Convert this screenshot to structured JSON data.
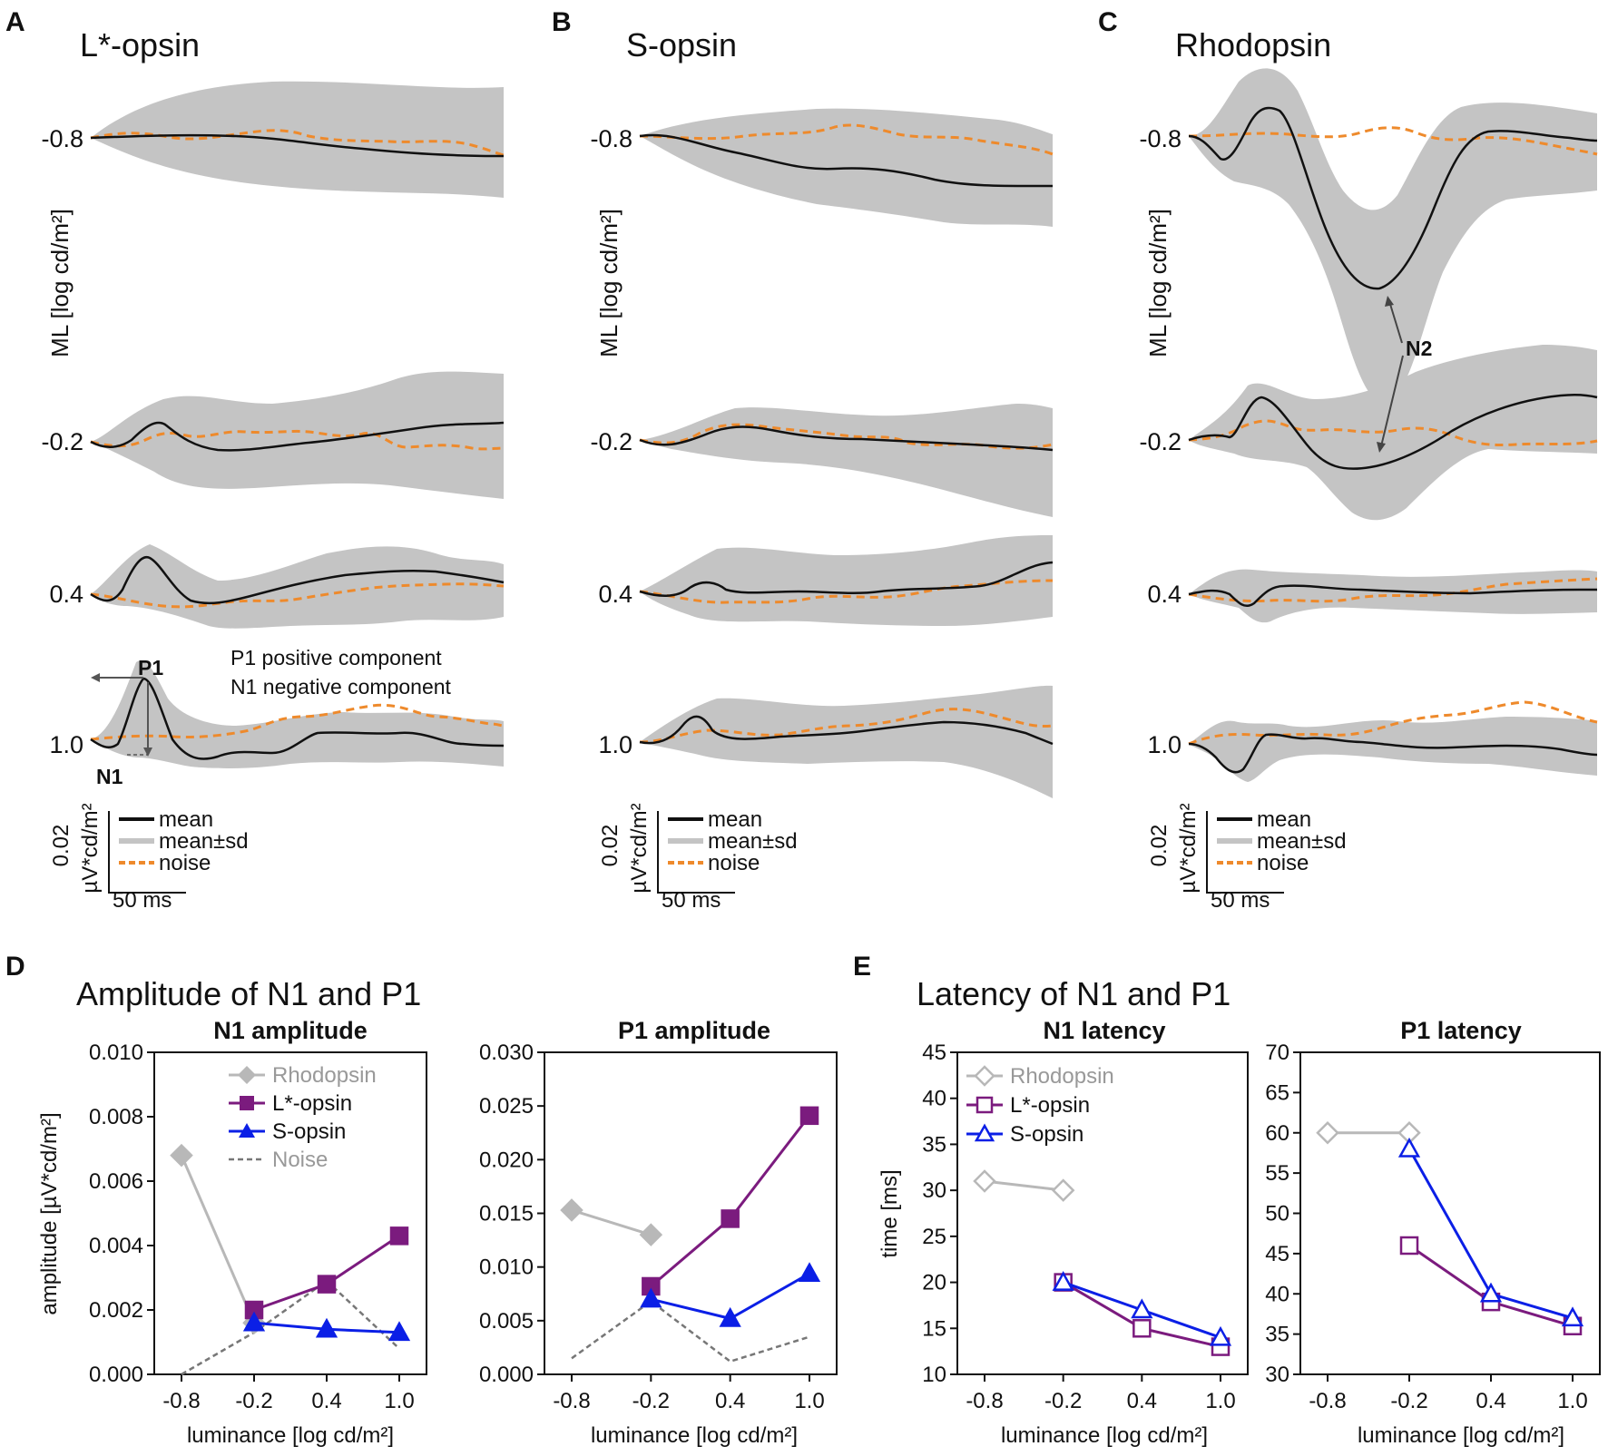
{
  "colors": {
    "mean": "#111111",
    "sd_band": "#c4c4c4",
    "noise": "#ee8a2c",
    "rhodopsin": "#b8b8b8",
    "l_opsin": "#7b1b7e",
    "s_opsin": "#0b1fe6",
    "noise_line": "#777777"
  },
  "chart_data": [
    {
      "panel": "A",
      "type": "line",
      "title": "L*-opsin",
      "ylabel": "ML [log cd/m²]",
      "levels": [
        "-0.8",
        "-0.2",
        "0.4",
        "1.0"
      ],
      "scalebar": {
        "amplitude": "0.02",
        "amplitude_unit": "µV*cd/m²",
        "time": "50 ms"
      },
      "legend": [
        "mean",
        "mean±sd",
        "noise"
      ],
      "annotations": [
        "P1",
        "N1",
        "P1 positive component",
        "N1 negative component"
      ]
    },
    {
      "panel": "B",
      "type": "line",
      "title": "S-opsin",
      "ylabel": "ML [log cd/m²]",
      "levels": [
        "-0.8",
        "-0.2",
        "0.4",
        "1.0"
      ],
      "scalebar": {
        "amplitude": "0.02",
        "amplitude_unit": "µV*cd/m²",
        "time": "50 ms"
      },
      "legend": [
        "mean",
        "mean±sd",
        "noise"
      ]
    },
    {
      "panel": "C",
      "type": "line",
      "title": "Rhodopsin",
      "ylabel": "ML [log cd/m²]",
      "levels": [
        "-0.8",
        "-0.2",
        "0.4",
        "1.0"
      ],
      "scalebar": {
        "amplitude": "0.02",
        "amplitude_unit": "µV*cd/m²",
        "time": "50 ms"
      },
      "legend": [
        "mean",
        "mean±sd",
        "noise"
      ],
      "annotations": [
        "N2"
      ]
    },
    {
      "panel": "D",
      "group_title": "Amplitude of N1 and P1",
      "type": "line",
      "title": "N1 amplitude",
      "xlabel": "luminance [log cd/m²]",
      "ylabel": "amplitude [µV*cd/m²]",
      "categories": [
        "-0.8",
        "-0.2",
        "0.4",
        "1.0"
      ],
      "ylim": [
        0,
        0.01
      ],
      "yticks": [
        "0.000",
        "0.002",
        "0.004",
        "0.006",
        "0.008",
        "0.010"
      ],
      "series": [
        {
          "name": "Rhodopsin",
          "values": [
            0.0068,
            0.0016,
            null,
            null
          ]
        },
        {
          "name": "L*-opsin",
          "values": [
            null,
            0.002,
            0.0028,
            0.0043
          ]
        },
        {
          "name": "S-opsin",
          "values": [
            null,
            0.0016,
            0.0014,
            0.0013
          ]
        },
        {
          "name": "Noise",
          "values": [
            0.0,
            0.0013,
            0.0029,
            0.0008
          ]
        }
      ]
    },
    {
      "panel": "D",
      "type": "line",
      "title": "P1 amplitude",
      "xlabel": "luminance [log cd/m²]",
      "categories": [
        "-0.8",
        "-0.2",
        "0.4",
        "1.0"
      ],
      "ylim": [
        0,
        0.03
      ],
      "yticks": [
        "0.000",
        "0.005",
        "0.010",
        "0.015",
        "0.020",
        "0.025",
        "0.030"
      ],
      "series": [
        {
          "name": "Rhodopsin",
          "values": [
            0.0153,
            0.013,
            null,
            null
          ]
        },
        {
          "name": "L*-opsin",
          "values": [
            null,
            0.0082,
            0.0145,
            0.0241
          ]
        },
        {
          "name": "S-opsin",
          "values": [
            null,
            0.007,
            0.0052,
            0.0094
          ]
        },
        {
          "name": "Noise",
          "values": [
            0.0015,
            0.0068,
            0.0012,
            0.0035
          ]
        }
      ]
    },
    {
      "panel": "E",
      "group_title": "Latency of N1 and P1",
      "type": "line",
      "title": "N1 latency",
      "xlabel": "luminance [log cd/m²]",
      "ylabel": "time [ms]",
      "categories": [
        "-0.8",
        "-0.2",
        "0.4",
        "1.0"
      ],
      "ylim": [
        10,
        45
      ],
      "yticks": [
        "10",
        "15",
        "20",
        "25",
        "30",
        "35",
        "40",
        "45"
      ],
      "series": [
        {
          "name": "Rhodopsin",
          "values": [
            31,
            30,
            null,
            null
          ]
        },
        {
          "name": "L*-opsin",
          "values": [
            null,
            20,
            15,
            13
          ]
        },
        {
          "name": "S-opsin",
          "values": [
            null,
            20,
            17,
            14
          ]
        }
      ]
    },
    {
      "panel": "E",
      "type": "line",
      "title": "P1 latency",
      "xlabel": "luminance [log cd/m²]",
      "categories": [
        "-0.8",
        "-0.2",
        "0.4",
        "1.0"
      ],
      "ylim": [
        30,
        70
      ],
      "yticks": [
        "30",
        "35",
        "40",
        "45",
        "50",
        "55",
        "60",
        "65",
        "70"
      ],
      "series": [
        {
          "name": "Rhodopsin",
          "values": [
            60,
            60,
            null,
            null
          ]
        },
        {
          "name": "L*-opsin",
          "values": [
            null,
            46,
            39,
            36
          ]
        },
        {
          "name": "S-opsin",
          "values": [
            null,
            58,
            40,
            37
          ]
        }
      ]
    }
  ]
}
